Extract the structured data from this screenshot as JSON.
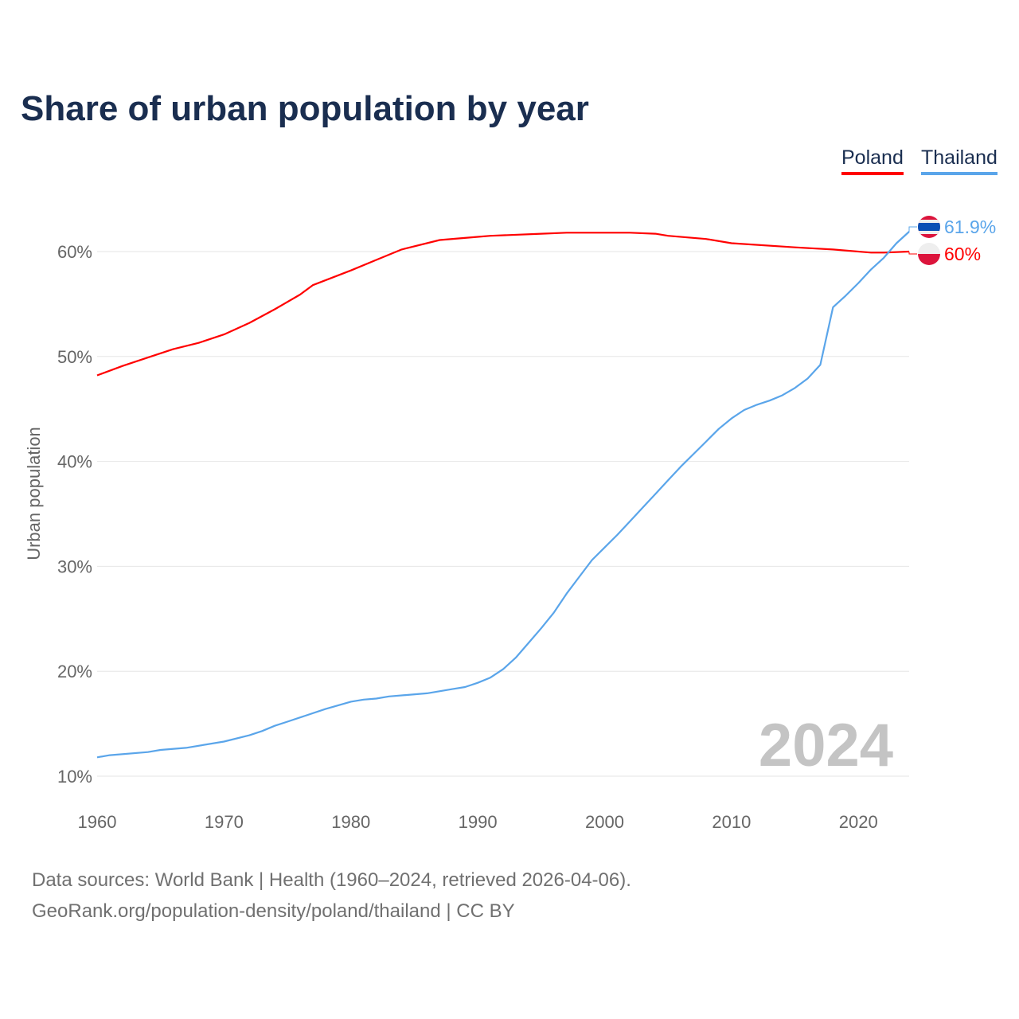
{
  "chart_data": {
    "type": "line",
    "title": "Share of urban population by year",
    "xlabel": "",
    "ylabel": "Urban population",
    "xlim": [
      1960,
      2024
    ],
    "ylim": [
      10,
      64
    ],
    "xticks": [
      1960,
      1970,
      1980,
      1990,
      2000,
      2010,
      2020
    ],
    "xtick_labels": [
      "1960",
      "1970",
      "1980",
      "1990",
      "2000",
      "2010",
      "2020"
    ],
    "yticks": [
      10,
      20,
      30,
      40,
      50,
      60
    ],
    "ytick_labels": [
      "10%",
      "20%",
      "30%",
      "40%",
      "50%",
      "60%"
    ],
    "grid": true,
    "legend_position": "top-right",
    "current_year": "2024",
    "series": [
      {
        "name": "Poland",
        "color": "#ff0000",
        "end_label": "60%",
        "x": [
          1960,
          1962,
          1964,
          1966,
          1968,
          1970,
          1972,
          1974,
          1976,
          1977,
          1980,
          1982,
          1984,
          1987,
          1990,
          1991,
          1995,
          1997,
          2000,
          2002,
          2004,
          2005,
          2008,
          2010,
          2015,
          2018,
          2021,
          2022,
          2024
        ],
        "values": [
          48.2,
          49.1,
          49.9,
          50.7,
          51.3,
          52.1,
          53.2,
          54.5,
          55.9,
          56.8,
          58.2,
          59.2,
          60.2,
          61.1,
          61.4,
          61.5,
          61.7,
          61.8,
          61.8,
          61.8,
          61.7,
          61.5,
          61.2,
          60.8,
          60.4,
          60.2,
          59.9,
          59.9,
          60.0
        ]
      },
      {
        "name": "Thailand",
        "color": "#5aa5ea",
        "end_label": "61.9%",
        "x": [
          1960,
          1961,
          1964,
          1965,
          1967,
          1970,
          1972,
          1973,
          1974,
          1975,
          1976,
          1978,
          1980,
          1981,
          1982,
          1983,
          1986,
          1988,
          1989,
          1990,
          1991,
          1992,
          1993,
          1994,
          1995,
          1996,
          1997,
          1998,
          1999,
          2000,
          2001,
          2002,
          2003,
          2004,
          2005,
          2006,
          2007,
          2008,
          2009,
          2010,
          2011,
          2012,
          2013,
          2014,
          2015,
          2016,
          2017,
          2018,
          2019,
          2020,
          2021,
          2022,
          2023,
          2024
        ],
        "values": [
          11.8,
          12.0,
          12.3,
          12.5,
          12.7,
          13.3,
          13.9,
          14.3,
          14.8,
          15.2,
          15.6,
          16.4,
          17.1,
          17.3,
          17.4,
          17.6,
          17.9,
          18.3,
          18.5,
          18.9,
          19.4,
          20.2,
          21.3,
          22.7,
          24.1,
          25.6,
          27.4,
          29.0,
          30.6,
          31.8,
          33.0,
          34.3,
          35.6,
          36.9,
          38.2,
          39.5,
          40.7,
          41.9,
          43.1,
          44.1,
          44.9,
          45.4,
          45.8,
          46.3,
          47.0,
          47.9,
          49.2,
          54.7,
          55.8,
          57.0,
          58.3,
          59.4,
          60.8,
          61.9
        ]
      }
    ]
  },
  "footer": {
    "line1": "Data sources: World Bank | Health (1960–2024, retrieved 2026-04-06).",
    "line2": "GeoRank.org/population-density/poland/thailand | CC BY"
  }
}
